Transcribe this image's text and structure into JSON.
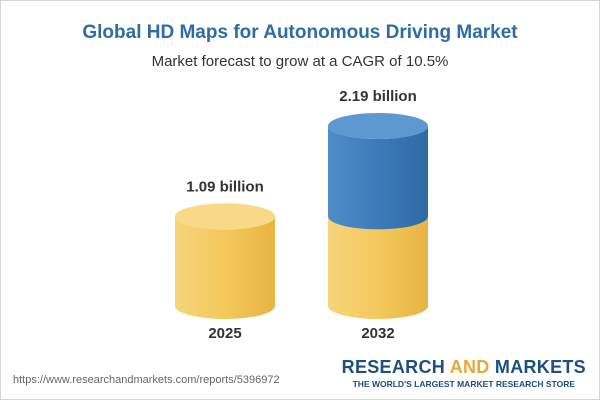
{
  "header": {
    "title": "Global HD Maps for Autonomous Driving Market",
    "subtitle": "Market forecast to grow at a CAGR of 10.5%"
  },
  "chart_data": {
    "type": "bar",
    "title": "Global HD Maps for Autonomous Driving Market",
    "subtitle": "Market forecast to grow at a CAGR of 10.5%",
    "categories": [
      "2025",
      "2032"
    ],
    "values": [
      1.09,
      2.19
    ],
    "data_labels": [
      "1.09 billion",
      "2.19 billion"
    ],
    "unit": "billion",
    "xlabel": "",
    "ylabel": "",
    "ylim": [
      0,
      2.19
    ],
    "grid": false,
    "legend": "none",
    "style": "3d-cylinder",
    "colors": {
      "base": "#f2c75c",
      "growth": "#3d7ab8",
      "label": "#333333"
    }
  },
  "footer": {
    "url": "https://www.researchandmarkets.com/reports/5396972",
    "brand_part1": "RESEARCH ",
    "brand_part2": "AND",
    "brand_part3": " MARKETS",
    "tagline": "THE WORLD'S LARGEST MARKET RESEARCH STORE"
  }
}
